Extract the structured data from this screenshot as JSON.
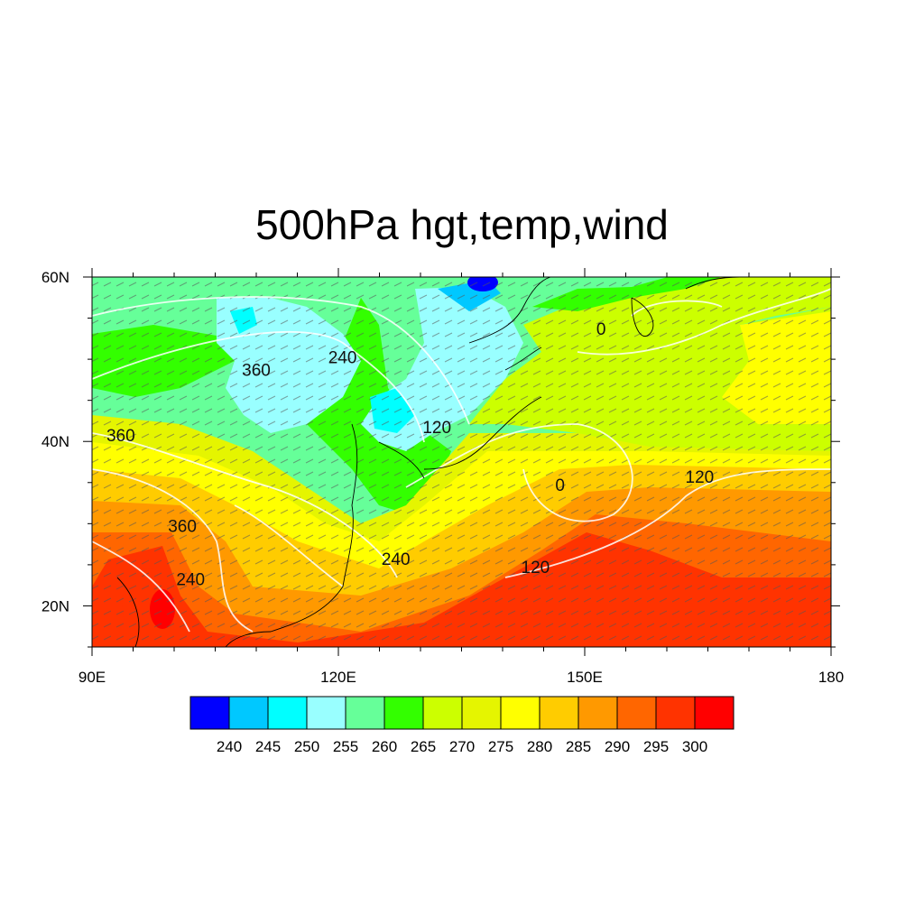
{
  "title": "500hPa hgt,temp,wind",
  "map": {
    "lon_range": [
      90,
      180
    ],
    "lat_range": [
      15,
      60
    ],
    "x_ticks": [
      {
        "lon": 90,
        "label": "90E"
      },
      {
        "lon": 120,
        "label": "120E"
      },
      {
        "lon": 150,
        "label": "150E"
      },
      {
        "lon": 180,
        "label": "180"
      }
    ],
    "y_ticks": [
      {
        "lat": 20,
        "label": "20N"
      },
      {
        "lat": 40,
        "label": "40N"
      },
      {
        "lat": 60,
        "label": "60N"
      }
    ]
  },
  "colorbar": {
    "colors": [
      "#0000ff",
      "#00c8ff",
      "#00ffff",
      "#99ffff",
      "#66ff99",
      "#33ff00",
      "#ccff00",
      "#e5f500",
      "#ffff00",
      "#ffcc00",
      "#ff9900",
      "#ff6600",
      "#ff3300",
      "#ff0000"
    ],
    "labels": [
      "240",
      "245",
      "250",
      "255",
      "260",
      "265",
      "270",
      "275",
      "280",
      "285",
      "290",
      "295",
      "300"
    ]
  },
  "contour_labels": [
    {
      "text": "360",
      "lon": 110,
      "lat": 48
    },
    {
      "text": "240",
      "lon": 120.5,
      "lat": 49.5
    },
    {
      "text": "0",
      "lon": 152,
      "lat": 53
    },
    {
      "text": "120",
      "lon": 132,
      "lat": 41
    },
    {
      "text": "360",
      "lon": 93.5,
      "lat": 40
    },
    {
      "text": "0",
      "lon": 147,
      "lat": 34
    },
    {
      "text": "120",
      "lon": 164,
      "lat": 35
    },
    {
      "text": "360",
      "lon": 101,
      "lat": 29
    },
    {
      "text": "240",
      "lon": 127,
      "lat": 25
    },
    {
      "text": "240",
      "lon": 102,
      "lat": 22.5
    },
    {
      "text": "120",
      "lon": 144,
      "lat": 24
    }
  ]
}
